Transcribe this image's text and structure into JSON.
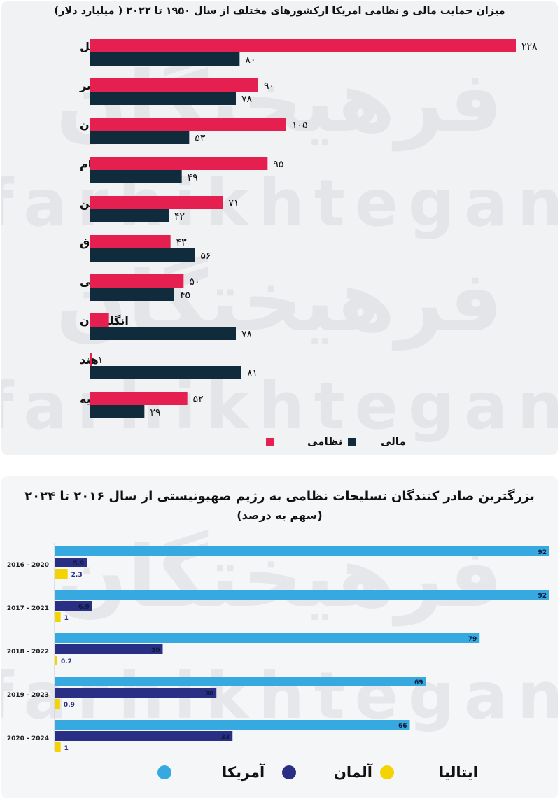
{
  "colors": {
    "panel_bg": "#f1f2f4",
    "military": "#e51f4f",
    "financial": "#0f2b3c",
    "usa": "#36a9e1",
    "germany": "#2a2f86",
    "italy": "#f4d400",
    "watermark": "#e4e5e8"
  },
  "watermark": {
    "fa": "فرهیختگان",
    "en": "farhikhtegan"
  },
  "chart_data": [
    {
      "type": "bar",
      "orientation": "horizontal",
      "title": "میزان حمایت مالی و نظامی امریکا ازکشورهای مختلف از سال ۱۹۵۰ تا ۲۰۲۲ ( میلیارد دلار)",
      "categories": [
        "اسراییل",
        "مصر",
        "افغانستان",
        "ویتنام",
        "اوکراین",
        "عراق",
        "کره جنوبی",
        "انگلستان",
        "هند",
        "ترکیه"
      ],
      "series": [
        {
          "name": "نظامی",
          "color": "#e51f4f",
          "values": [
            228,
            90,
            105,
            95,
            71,
            43,
            50,
            10,
            1,
            52
          ],
          "labels": [
            "۲۲۸",
            "۹۰",
            "۱۰۵",
            "۹۵",
            "۷۱",
            "۴۳",
            "۵۰",
            "۱۰",
            "۱",
            "۵۲"
          ]
        },
        {
          "name": "مالی",
          "color": "#0f2b3c",
          "values": [
            80,
            78,
            53,
            49,
            42,
            56,
            45,
            78,
            81,
            29
          ],
          "labels": [
            "۸۰",
            "۷۸",
            "۵۳",
            "۴۹",
            "۴۲",
            "۵۶",
            "۴۵",
            "۷۸",
            "۸۱",
            "۲۹"
          ]
        }
      ],
      "xlim": [
        0,
        228
      ],
      "legend_position": "bottom"
    },
    {
      "type": "bar",
      "orientation": "horizontal",
      "title": "بزرگترین صادر کنندگان تسلیحات نظامی به رژیم صهیونیستی از سال ۲۰۱۶ تا ۲۰۲۴",
      "subtitle": "(سهم به درصد)",
      "categories": [
        "2016 - 2020",
        "2017 - 2021",
        "2018 - 2022",
        "2019 - 2023",
        "2020 - 2024"
      ],
      "series": [
        {
          "name": "آمریکا",
          "color": "#36a9e1",
          "values": [
            92,
            92,
            79,
            69,
            66
          ],
          "labels": [
            "92",
            "92",
            "79",
            "69",
            "66"
          ]
        },
        {
          "name": "آلمان",
          "color": "#2a2f86",
          "values": [
            5.9,
            6.9,
            20,
            30,
            33
          ],
          "labels": [
            "5.9",
            "6.9",
            "20",
            "30",
            "33"
          ]
        },
        {
          "name": "ایتالیا",
          "color": "#f4d400",
          "values": [
            2.3,
            1,
            0.2,
            0.9,
            1
          ],
          "labels": [
            "2.3",
            "1",
            "0.2",
            "0.9",
            "1"
          ]
        }
      ],
      "xlim": [
        0,
        92
      ],
      "legend_position": "bottom"
    }
  ]
}
